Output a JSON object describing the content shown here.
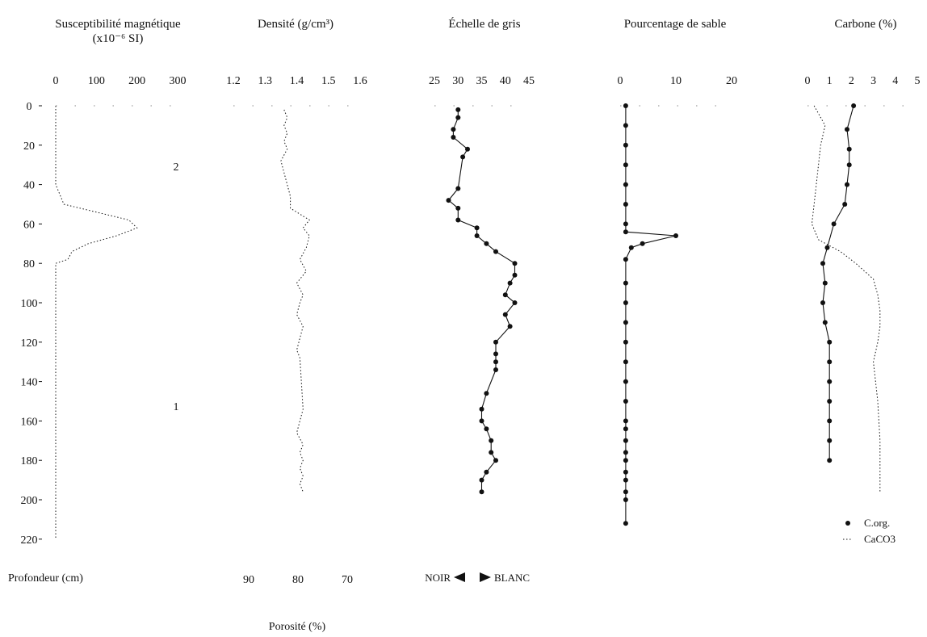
{
  "figure": {
    "depth_axis": {
      "label": "Profondeur (cm)",
      "ticks": [
        "0",
        "20",
        "40",
        "60",
        "80",
        "100",
        "120",
        "140",
        "160",
        "180",
        "200",
        "220"
      ]
    },
    "porosity_label": "Porosité (%)",
    "porosity_ticks": [
      "90",
      "80",
      "70"
    ],
    "gray_direction": {
      "left": "NOIR",
      "right": "BLANC"
    },
    "unit_marks": [
      "2",
      "1"
    ],
    "carbon_legend": [
      "C.org.",
      "CaCO3"
    ]
  },
  "chart_data": [
    {
      "type": "line",
      "title": [
        "Susceptibilité magnétique",
        "(x10⁻⁶ SI)"
      ],
      "x_ticks": [
        "0",
        "100",
        "200",
        "300"
      ],
      "xlim": [
        0,
        300
      ],
      "ylim": [
        0,
        220
      ],
      "series": [
        {
          "x": [
            0,
            0,
            0,
            0,
            0,
            20,
            180,
            200,
            150,
            80,
            40,
            30,
            0,
            0,
            0,
            0,
            0,
            0,
            0,
            0,
            0
          ],
          "y": [
            0,
            10,
            20,
            30,
            40,
            50,
            58,
            62,
            66,
            70,
            74,
            78,
            80,
            100,
            120,
            140,
            160,
            180,
            200,
            210,
            220
          ]
        }
      ]
    },
    {
      "type": "line",
      "title": "Densité (g/cm³)",
      "x_ticks": [
        "1.2",
        "1.3",
        "1.4",
        "1.5",
        "1.6"
      ],
      "xlim": [
        1.2,
        1.6
      ],
      "ylim": [
        0,
        220
      ],
      "series": [
        {
          "x": [
            1.36,
            1.37,
            1.36,
            1.37,
            1.36,
            1.37,
            1.35,
            1.36,
            1.37,
            1.38,
            1.38,
            1.44,
            1.42,
            1.44,
            1.43,
            1.41,
            1.43,
            1.4,
            1.42,
            1.41,
            1.4,
            1.42,
            1.41,
            1.4,
            1.41,
            1.42,
            1.41,
            1.4,
            1.42,
            1.41,
            1.42,
            1.41,
            1.42,
            1.41,
            1.42
          ],
          "y": [
            2,
            6,
            10,
            14,
            18,
            22,
            28,
            34,
            40,
            46,
            52,
            58,
            62,
            66,
            72,
            78,
            84,
            90,
            96,
            100,
            106,
            112,
            118,
            124,
            128,
            154,
            160,
            166,
            172,
            176,
            180,
            184,
            188,
            192,
            196
          ]
        }
      ]
    },
    {
      "type": "line",
      "title": "Échelle de gris",
      "x_ticks": [
        "25",
        "30",
        "35",
        "40",
        "45"
      ],
      "xlim": [
        25,
        45
      ],
      "ylim": [
        0,
        220
      ],
      "series": [
        {
          "x": [
            30,
            30,
            29,
            29,
            32,
            31,
            30,
            28,
            30,
            30,
            34,
            34,
            36,
            38,
            42,
            42,
            41,
            40,
            42,
            40,
            41,
            38,
            38,
            38,
            38,
            36,
            35,
            35,
            36,
            37,
            37,
            38,
            36,
            35,
            35
          ],
          "y": [
            2,
            6,
            12,
            16,
            22,
            26,
            42,
            48,
            52,
            58,
            62,
            66,
            70,
            74,
            80,
            86,
            90,
            96,
            100,
            106,
            112,
            120,
            126,
            130,
            134,
            146,
            154,
            160,
            164,
            170,
            176,
            180,
            186,
            190,
            196
          ]
        }
      ]
    },
    {
      "type": "line",
      "title": "Pourcentage de sable",
      "x_ticks": [
        "0",
        "10",
        "20"
      ],
      "xlim": [
        0,
        20
      ],
      "ylim": [
        0,
        220
      ],
      "series": [
        {
          "x": [
            1,
            1,
            1,
            1,
            1,
            1,
            1,
            1,
            10,
            4,
            2,
            1,
            1,
            1,
            1,
            1,
            1,
            1,
            1,
            1,
            1,
            1,
            1,
            1,
            1,
            1,
            1,
            1,
            1
          ],
          "y": [
            0,
            10,
            20,
            30,
            40,
            50,
            60,
            64,
            66,
            70,
            72,
            78,
            90,
            100,
            110,
            120,
            130,
            140,
            150,
            160,
            164,
            170,
            176,
            180,
            186,
            190,
            196,
            200,
            212
          ]
        }
      ]
    },
    {
      "type": "line",
      "title": "Carbone (%)",
      "x_ticks": [
        "0",
        "1",
        "2",
        "3",
        "4",
        "5"
      ],
      "xlim": [
        0,
        5
      ],
      "ylim": [
        0,
        220
      ],
      "series": [
        {
          "name": "C.org.",
          "x": [
            2.1,
            1.8,
            1.9,
            1.9,
            1.8,
            1.7,
            1.2,
            0.9,
            0.7,
            0.8,
            0.7,
            0.8,
            1.0,
            1.0,
            1.0,
            1.0,
            1.0,
            1.0,
            1.0
          ],
          "y": [
            0,
            12,
            22,
            30,
            40,
            50,
            60,
            72,
            80,
            90,
            100,
            110,
            120,
            130,
            140,
            150,
            160,
            170,
            180
          ]
        },
        {
          "name": "CaCO3",
          "x": [
            0.3,
            0.8,
            0.6,
            0.5,
            0.4,
            0.3,
            0.2,
            0.5,
            1.5,
            2.2,
            3.0,
            3.2,
            3.3,
            3.3,
            3.2,
            3.0,
            3.1,
            3.2,
            3.3,
            3.3
          ],
          "y": [
            0,
            10,
            20,
            30,
            40,
            50,
            60,
            68,
            74,
            80,
            88,
            96,
            104,
            112,
            120,
            130,
            140,
            150,
            170,
            196
          ]
        }
      ]
    }
  ]
}
